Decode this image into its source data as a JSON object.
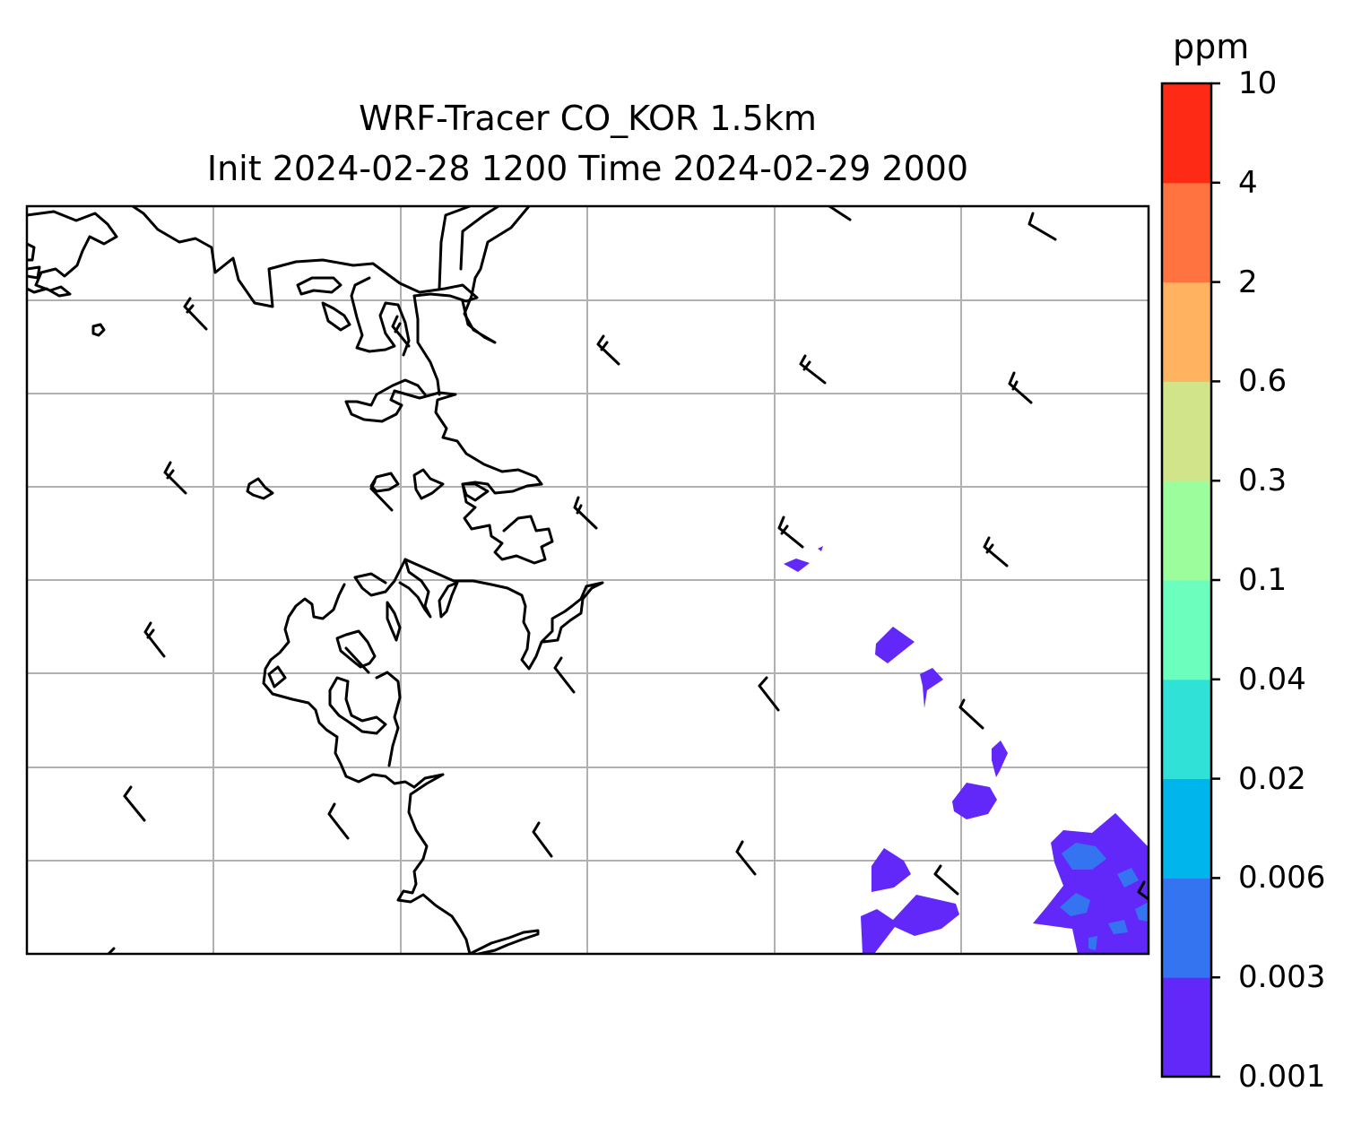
{
  "title": {
    "line1": "WRF-Tracer CO_KOR 1.5km",
    "line2": "Init 2024-02-28 1200 Time 2024-02-29 2000"
  },
  "colorbar": {
    "unit": "ppm",
    "ticks": [
      "0.001",
      "0.003",
      "0.006",
      "0.02",
      "0.04",
      "0.1",
      "0.3",
      "0.6",
      "2",
      "4",
      "10"
    ],
    "colors": [
      "#6228fa",
      "#3574f0",
      "#00b5eb",
      "#30e1d8",
      "#6bfebc",
      "#9bfd9b",
      "#d2e48a",
      "#ffb360",
      "#ff7341",
      "#ff2a15"
    ]
  },
  "map": {
    "gridlines": true,
    "features": [
      "coastline",
      "wind-barbs",
      "co-concentration-contours"
    ]
  }
}
